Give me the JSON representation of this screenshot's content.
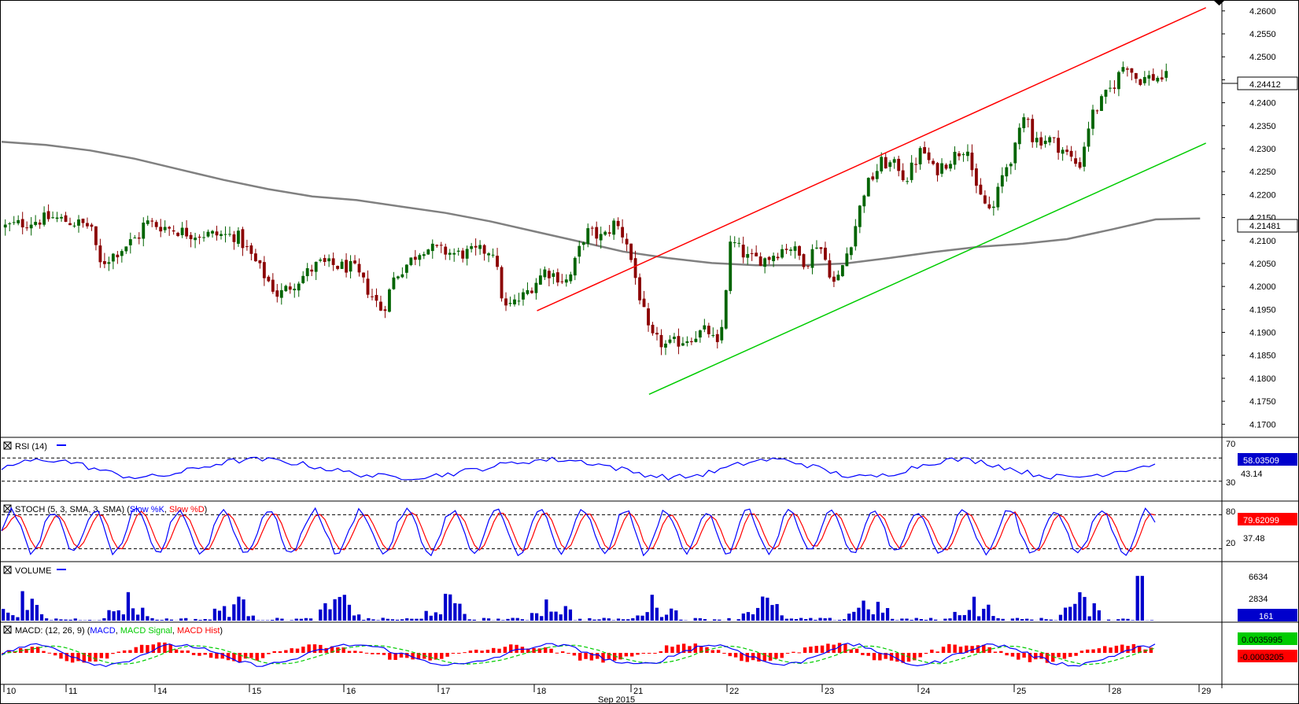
{
  "chart_data": {
    "type": "candlestick",
    "x_axis": {
      "month_label": "Sep 2015",
      "day_labels": [
        "10",
        "11",
        "14",
        "15",
        "16",
        "17",
        "18",
        "21",
        "22",
        "23",
        "24",
        "25",
        "28",
        "29"
      ]
    },
    "price_panel": {
      "ylim": [
        4.168,
        4.261
      ],
      "tick_labels": [
        "4.2600",
        "4.2550",
        "4.2500",
        "4.2450",
        "4.2400",
        "4.2350",
        "4.2300",
        "4.2250",
        "4.2200",
        "4.2150",
        "4.2100",
        "4.2050",
        "4.2000",
        "4.1950",
        "4.1900",
        "4.1850",
        "4.1800",
        "4.1750",
        "4.1700"
      ],
      "current_price_label": "4.24412",
      "current_price": 4.24412,
      "moving_average_label": "4.21481",
      "moving_average_value": 4.21481,
      "moving_average_points": [
        4.2315,
        4.2308,
        4.2296,
        4.2278,
        4.2255,
        4.2232,
        4.2212,
        4.2196,
        4.2188,
        4.2174,
        4.216,
        4.2142,
        4.212,
        4.2098,
        4.2076,
        4.2062,
        4.2051,
        4.2046,
        4.2046,
        4.205,
        4.2062,
        4.2075,
        4.2086,
        4.2093,
        4.2103,
        4.2124,
        4.2146,
        4.2148
      ],
      "channel_upper": {
        "from": [
          0.4445,
          4.1947
        ],
        "to": [
          0.9998,
          4.2607
        ],
        "color": "#ff0000"
      },
      "channel_lower": {
        "from": [
          0.5375,
          4.1765
        ],
        "to": [
          0.9998,
          4.2312
        ],
        "color": "#00cc00"
      },
      "candle_count": 270,
      "candle_anchors": [
        [
          0,
          4.213
        ],
        [
          0.04,
          4.215
        ],
        [
          0.075,
          4.213
        ],
        [
          0.08,
          4.2045
        ],
        [
          0.115,
          4.211
        ],
        [
          0.12,
          4.214
        ],
        [
          0.16,
          4.2115
        ],
        [
          0.2,
          4.211
        ],
        [
          0.235,
          4.198
        ],
        [
          0.27,
          4.205
        ],
        [
          0.3,
          4.204
        ],
        [
          0.325,
          4.1945
        ],
        [
          0.335,
          4.202
        ],
        [
          0.36,
          4.2085
        ],
        [
          0.39,
          4.207
        ],
        [
          0.42,
          4.208
        ],
        [
          0.43,
          4.195
        ],
        [
          0.445,
          4.1975
        ],
        [
          0.465,
          4.2035
        ],
        [
          0.485,
          4.201
        ],
        [
          0.5,
          4.212
        ],
        [
          0.515,
          4.2105
        ],
        [
          0.525,
          4.214
        ],
        [
          0.535,
          4.21
        ],
        [
          0.555,
          4.189
        ],
        [
          0.57,
          4.187
        ],
        [
          0.59,
          4.189
        ],
        [
          0.605,
          4.1905
        ],
        [
          0.615,
          4.186
        ],
        [
          0.625,
          4.21
        ],
        [
          0.64,
          4.206
        ],
        [
          0.655,
          4.206
        ],
        [
          0.675,
          4.209
        ],
        [
          0.69,
          4.205
        ],
        [
          0.7,
          4.21
        ],
        [
          0.715,
          4.2
        ],
        [
          0.73,
          4.211
        ],
        [
          0.74,
          4.221
        ],
        [
          0.755,
          4.227
        ],
        [
          0.77,
          4.226
        ],
        [
          0.775,
          4.223
        ],
        [
          0.79,
          4.23
        ],
        [
          0.8,
          4.225
        ],
        [
          0.82,
          4.229
        ],
        [
          0.83,
          4.231
        ],
        [
          0.835,
          4.221
        ],
        [
          0.85,
          4.216
        ],
        [
          0.86,
          4.225
        ],
        [
          0.87,
          4.23
        ],
        [
          0.88,
          4.239
        ],
        [
          0.885,
          4.232
        ],
        [
          0.9,
          4.232
        ],
        [
          0.91,
          4.23
        ],
        [
          0.925,
          4.226
        ],
        [
          0.935,
          4.237
        ],
        [
          0.955,
          4.244
        ],
        [
          0.965,
          4.249
        ],
        [
          0.975,
          4.245
        ],
        [
          0.985,
          4.2455
        ]
      ]
    },
    "rsi_panel": {
      "label": "RSI (14)",
      "levels": [
        70,
        30
      ],
      "level_labels": [
        "70",
        "30"
      ],
      "value_label": "58.03509",
      "value": 58.03509,
      "scale_label": "43.14",
      "line_color": "#0000ff"
    },
    "stoch_panel": {
      "label_prefix": "STOCH (5, 3, SMA, 3, SMA) (",
      "k_label": "Slow %K",
      "d_label": "Slow %D",
      "label_suffix": ")",
      "levels": [
        80,
        20
      ],
      "level_labels": [
        "80",
        "20"
      ],
      "value_label": "79.62099",
      "value": 79.62099,
      "scale_label": "37.48",
      "k_color": "#0000ff",
      "d_color": "#ff0000"
    },
    "volume_panel": {
      "label": "VOLUME",
      "tick_labels": [
        "6634",
        "2834"
      ],
      "value_label": "161",
      "value": 161,
      "bar_color": "#0000cc",
      "ylim": [
        0,
        8200
      ]
    },
    "macd_panel": {
      "label_prefix": "MACD: (12, 26, 9) (",
      "macd_label": "MACD",
      "signal_label": "MACD Signal",
      "hist_label": "MACD Hist",
      "label_suffix": ")",
      "macd_value_label": "0.0035995",
      "hist_value_label": "-0.0003205",
      "macd_value": 0.0035995,
      "hist_value": -0.0003205,
      "macd_color": "#0000ff",
      "signal_color": "#00cc00",
      "hist_color": "#ff0000"
    },
    "colors": {
      "bull_candle": "#006400",
      "bear_candle": "#8b0000",
      "ma_line": "#808080",
      "grid_dash": "#000000",
      "value_box": "#0000cc"
    }
  }
}
